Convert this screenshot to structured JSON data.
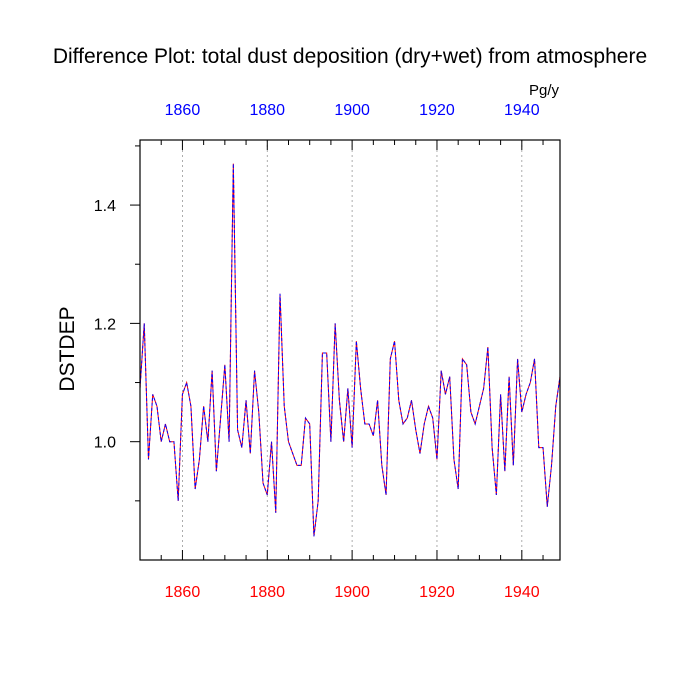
{
  "title": "Difference Plot: total dust deposition (dry+wet) from atmosphere",
  "units": "Pg/y",
  "colors": {
    "top_axis_labels": "#0000ff",
    "bottom_axis_labels": "#ff0000",
    "series_a": "#ff0000",
    "series_b": "#0000ff",
    "grid": "#999999"
  },
  "chart_data": {
    "type": "line",
    "title": "Difference Plot: total dust deposition (dry+wet) from atmosphere",
    "xlabel": "",
    "ylabel": "DSTDEP",
    "units": "Pg/y",
    "xlim": [
      1850,
      1949
    ],
    "ylim": [
      0.8,
      1.51
    ],
    "x_ticks": [
      1860,
      1880,
      1900,
      1920,
      1940
    ],
    "x_tick_labels": [
      "1860",
      "1880",
      "1900",
      "1920",
      "1940"
    ],
    "y_ticks": [
      1.0,
      1.2,
      1.4
    ],
    "y_tick_labels": [
      "1.0",
      "1.2",
      "1.4"
    ],
    "grid": "vertical dashed at x major ticks",
    "line_style": "dashed",
    "x": [
      1850,
      1851,
      1852,
      1853,
      1854,
      1855,
      1856,
      1857,
      1858,
      1859,
      1860,
      1861,
      1862,
      1863,
      1864,
      1865,
      1866,
      1867,
      1868,
      1869,
      1870,
      1871,
      1872,
      1873,
      1874,
      1875,
      1876,
      1877,
      1878,
      1879,
      1880,
      1881,
      1882,
      1883,
      1884,
      1885,
      1886,
      1887,
      1888,
      1889,
      1890,
      1891,
      1892,
      1893,
      1894,
      1895,
      1896,
      1897,
      1898,
      1899,
      1900,
      1901,
      1902,
      1903,
      1904,
      1905,
      1906,
      1907,
      1908,
      1909,
      1910,
      1911,
      1912,
      1913,
      1914,
      1915,
      1916,
      1917,
      1918,
      1919,
      1920,
      1921,
      1922,
      1923,
      1924,
      1925,
      1926,
      1927,
      1928,
      1929,
      1930,
      1931,
      1932,
      1933,
      1934,
      1935,
      1936,
      1937,
      1938,
      1939,
      1940,
      1941,
      1942,
      1943,
      1944,
      1945,
      1946,
      1947,
      1948,
      1949
    ],
    "series": [
      {
        "values": [
          1.09,
          1.2,
          0.97,
          1.08,
          1.06,
          1.0,
          1.03,
          1.0,
          1.0,
          0.9,
          1.08,
          1.1,
          1.06,
          0.92,
          0.97,
          1.06,
          1.0,
          1.12,
          0.95,
          1.04,
          1.13,
          1.0,
          1.47,
          1.02,
          0.99,
          1.07,
          0.98,
          1.12,
          1.05,
          0.93,
          0.91,
          1.0,
          0.88,
          1.25,
          1.06,
          1.0,
          0.98,
          0.96,
          0.96,
          1.04,
          1.03,
          0.84,
          0.9,
          1.15,
          1.15,
          1.0,
          1.2,
          1.07,
          1.0,
          1.09,
          0.99,
          1.17,
          1.09,
          1.03,
          1.03,
          1.01,
          1.07,
          0.96,
          0.91,
          1.14,
          1.17,
          1.07,
          1.03,
          1.04,
          1.07,
          1.02,
          0.98,
          1.03,
          1.06,
          1.04,
          0.97,
          1.12,
          1.08,
          1.11,
          0.97,
          0.92,
          1.14,
          1.13,
          1.05,
          1.03,
          1.06,
          1.09,
          1.16,
          0.99,
          0.91,
          1.08,
          0.95,
          1.11,
          0.96,
          1.14,
          1.05,
          1.08,
          1.1,
          1.14,
          0.99,
          0.99,
          0.89,
          0.96,
          1.06,
          1.11
        ]
      }
    ]
  }
}
